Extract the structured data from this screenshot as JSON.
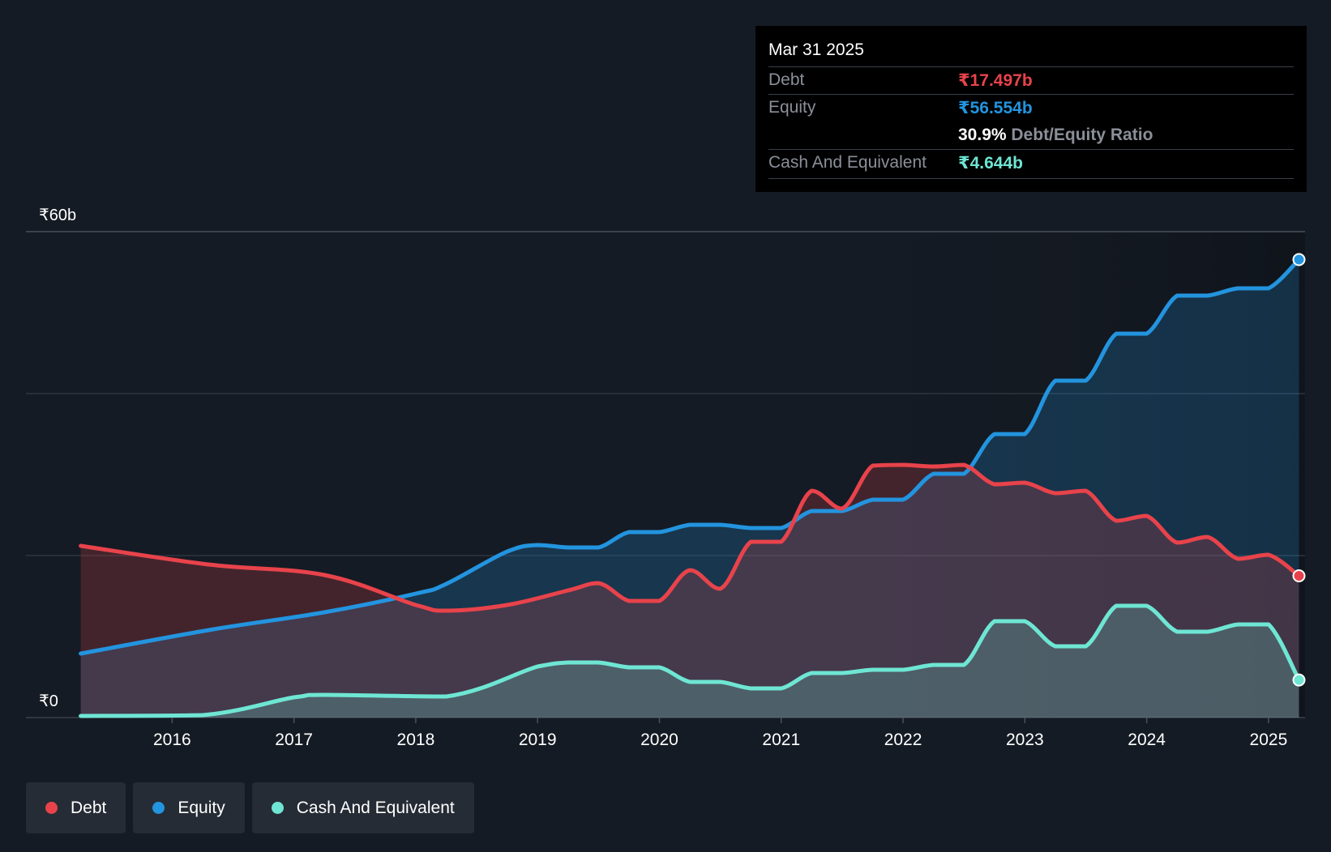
{
  "tooltip": {
    "date": "Mar 31 2025",
    "debt_label": "Debt",
    "debt_value": "₹17.497b",
    "equity_label": "Equity",
    "equity_value": "₹56.554b",
    "ratio_value": "30.9%",
    "ratio_label": "Debt/Equity Ratio",
    "cash_label": "Cash And Equivalent",
    "cash_value": "₹4.644b"
  },
  "legend": {
    "debt": "Debt",
    "equity": "Equity",
    "cash": "Cash And Equivalent"
  },
  "colors": {
    "debt": "#e8434b",
    "equity": "#2394df",
    "cash": "#6ee6d3",
    "background": "#151b24"
  },
  "chart_data": {
    "type": "area",
    "title": "",
    "xlabel": "",
    "ylabel": "",
    "ylim": [
      0,
      60
    ],
    "xlim": [
      2014.75,
      2025.3
    ],
    "y_tick_labels": [
      {
        "value": 0,
        "label": "₹0"
      },
      {
        "value": 60,
        "label": "₹60b"
      }
    ],
    "gridlines_y": [
      20,
      40,
      60
    ],
    "x_ticks": [
      {
        "value": 2016,
        "label": "2016"
      },
      {
        "value": 2017,
        "label": "2017"
      },
      {
        "value": 2018,
        "label": "2018"
      },
      {
        "value": 2019,
        "label": "2019"
      },
      {
        "value": 2020,
        "label": "2020"
      },
      {
        "value": 2021,
        "label": "2021"
      },
      {
        "value": 2022,
        "label": "2022"
      },
      {
        "value": 2023,
        "label": "2023"
      },
      {
        "value": 2024,
        "label": "2024"
      },
      {
        "value": 2025,
        "label": "2025"
      }
    ],
    "series": [
      {
        "key": "debt",
        "name": "Debt",
        "points": [
          [
            2015.25,
            21.2
          ],
          [
            2016.3,
            18.9
          ],
          [
            2017.25,
            17.6
          ],
          [
            2018.0,
            13.9
          ],
          [
            2018.25,
            13.2
          ],
          [
            2018.75,
            13.9
          ],
          [
            2019.25,
            15.7
          ],
          [
            2019.5,
            16.6
          ],
          [
            2019.75,
            14.4
          ],
          [
            2020.0,
            14.4
          ],
          [
            2020.25,
            18.2
          ],
          [
            2020.5,
            15.9
          ],
          [
            2020.75,
            21.7
          ],
          [
            2021.0,
            21.7
          ],
          [
            2021.25,
            28.0
          ],
          [
            2021.5,
            25.8
          ],
          [
            2021.75,
            31.1
          ],
          [
            2022.0,
            31.2
          ],
          [
            2022.25,
            31.0
          ],
          [
            2022.5,
            31.2
          ],
          [
            2022.75,
            28.8
          ],
          [
            2023.0,
            29.0
          ],
          [
            2023.25,
            27.7
          ],
          [
            2023.5,
            28.0
          ],
          [
            2023.75,
            24.3
          ],
          [
            2024.0,
            24.9
          ],
          [
            2024.25,
            21.6
          ],
          [
            2024.5,
            22.3
          ],
          [
            2024.75,
            19.6
          ],
          [
            2025.0,
            20.1
          ],
          [
            2025.25,
            17.5
          ]
        ]
      },
      {
        "key": "equity",
        "name": "Equity",
        "points": [
          [
            2015.25,
            7.9
          ],
          [
            2016.3,
            10.8
          ],
          [
            2017.25,
            13.0
          ],
          [
            2018.0,
            15.3
          ],
          [
            2018.25,
            16.5
          ],
          [
            2018.75,
            20.5
          ],
          [
            2019.0,
            21.3
          ],
          [
            2019.25,
            21.0
          ],
          [
            2019.5,
            21.0
          ],
          [
            2019.75,
            22.9
          ],
          [
            2020.0,
            22.9
          ],
          [
            2020.25,
            23.8
          ],
          [
            2020.5,
            23.8
          ],
          [
            2020.75,
            23.4
          ],
          [
            2021.0,
            23.4
          ],
          [
            2021.25,
            25.5
          ],
          [
            2021.5,
            25.5
          ],
          [
            2021.75,
            26.9
          ],
          [
            2022.0,
            26.9
          ],
          [
            2022.25,
            30.1
          ],
          [
            2022.5,
            30.1
          ],
          [
            2022.75,
            35.0
          ],
          [
            2023.0,
            35.0
          ],
          [
            2023.25,
            41.6
          ],
          [
            2023.5,
            41.6
          ],
          [
            2023.75,
            47.4
          ],
          [
            2024.0,
            47.4
          ],
          [
            2024.25,
            52.1
          ],
          [
            2024.5,
            52.1
          ],
          [
            2024.75,
            53.0
          ],
          [
            2025.0,
            53.0
          ],
          [
            2025.25,
            56.55
          ]
        ]
      },
      {
        "key": "cash",
        "name": "Cash And Equivalent",
        "points": [
          [
            2015.25,
            0.2
          ],
          [
            2016.25,
            0.3
          ],
          [
            2017.0,
            2.5
          ],
          [
            2017.25,
            2.8
          ],
          [
            2018.25,
            2.6
          ],
          [
            2019.0,
            6.3
          ],
          [
            2019.25,
            6.8
          ],
          [
            2019.5,
            6.8
          ],
          [
            2019.75,
            6.2
          ],
          [
            2020.0,
            6.2
          ],
          [
            2020.25,
            4.4
          ],
          [
            2020.5,
            4.4
          ],
          [
            2020.75,
            3.6
          ],
          [
            2021.0,
            3.6
          ],
          [
            2021.25,
            5.5
          ],
          [
            2021.5,
            5.5
          ],
          [
            2021.75,
            5.9
          ],
          [
            2022.0,
            5.9
          ],
          [
            2022.25,
            6.5
          ],
          [
            2022.5,
            6.5
          ],
          [
            2022.75,
            11.9
          ],
          [
            2023.0,
            11.9
          ],
          [
            2023.25,
            8.8
          ],
          [
            2023.5,
            8.8
          ],
          [
            2023.75,
            13.8
          ],
          [
            2024.0,
            13.8
          ],
          [
            2024.25,
            10.6
          ],
          [
            2024.5,
            10.6
          ],
          [
            2024.75,
            11.5
          ],
          [
            2025.0,
            11.5
          ],
          [
            2025.25,
            4.64
          ]
        ]
      }
    ],
    "legend_position": "bottom-left"
  }
}
